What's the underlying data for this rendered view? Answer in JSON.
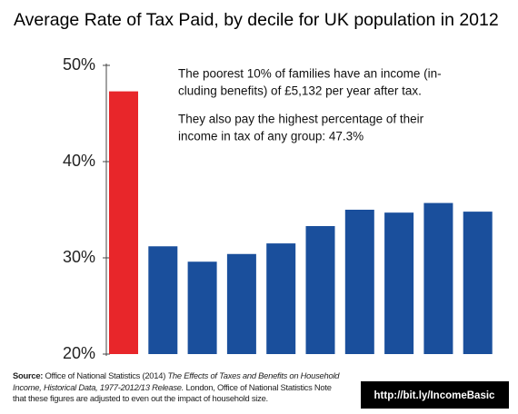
{
  "chart_data": {
    "type": "bar",
    "title": "Average Rate of Tax Paid, by decile for UK population in 2012",
    "categories": [
      null,
      null,
      null,
      null,
      null,
      null,
      null,
      null,
      null,
      null
    ],
    "values": [
      47.3,
      31.2,
      29.6,
      30.4,
      31.5,
      33.3,
      35.0,
      34.7,
      35.7,
      34.8
    ],
    "colors": [
      "#e8262a",
      "#1a4f9c",
      "#1a4f9c",
      "#1a4f9c",
      "#1a4f9c",
      "#1a4f9c",
      "#1a4f9c",
      "#1a4f9c",
      "#1a4f9c",
      "#1a4f9c"
    ],
    "ylim": [
      20,
      50
    ],
    "yticks": [
      {
        "value": 20,
        "label": "20%"
      },
      {
        "value": 30,
        "label": "30%"
      },
      {
        "value": 40,
        "label": "40%"
      },
      {
        "value": 50,
        "label": "50%"
      }
    ],
    "grid": false,
    "annotations": [
      "The poorest 10% of families have an income (in-",
      "cluding benefits) of £5,132 per year after tax.",
      "They also pay the highest percentage of their",
      "income in tax of any group: 47.3%"
    ],
    "source": {
      "label": "Source:",
      "text1": "Office of National Statistics (2014)",
      "italic": "The Effects of Taxes and Benefits on Household Income, Historical Data, 1977-2012/13 Release.",
      "text2": "London, Office of National Statistics Note that these figures are adjusted to even out the impact of household size."
    },
    "link": "http://bit.ly/IncomeBasic"
  }
}
